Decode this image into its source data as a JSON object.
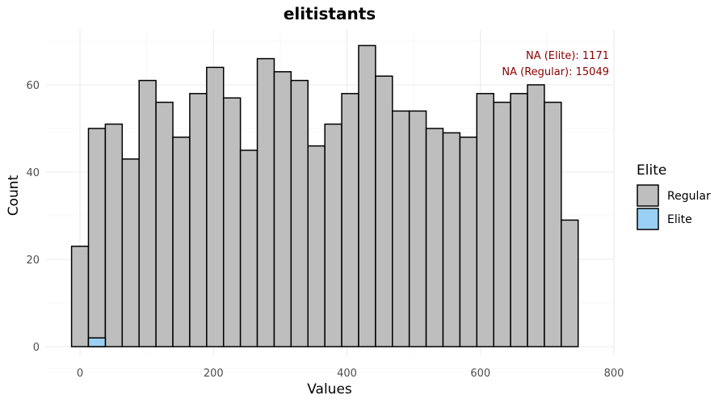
{
  "chart_data": {
    "type": "bar",
    "title": "elitistants",
    "xlabel": "Values",
    "ylabel": "Count",
    "xlim": [
      -25,
      800
    ],
    "ylim": [
      0,
      70
    ],
    "x_ticks": [
      0,
      200,
      400,
      600,
      800
    ],
    "y_ticks": [
      0,
      20,
      40,
      60
    ],
    "bin_width": 25.3,
    "bin_start": -12.6,
    "grid": true,
    "legend": {
      "title": "Elite",
      "position": "right",
      "entries": [
        {
          "label": "Regular",
          "color": "#bebebe"
        },
        {
          "label": "Elite",
          "color": "#9ad0f3"
        }
      ]
    },
    "series": [
      {
        "name": "Regular",
        "color": "#bebebe",
        "values": [
          23,
          50,
          51,
          43,
          61,
          56,
          48,
          58,
          64,
          57,
          45,
          66,
          63,
          61,
          46,
          51,
          58,
          69,
          62,
          54,
          54,
          50,
          49,
          48,
          58,
          56,
          58,
          60,
          56,
          29
        ]
      },
      {
        "name": "Elite",
        "color": "#9ad0f3",
        "values": [
          0,
          2,
          0,
          0,
          0,
          0,
          0,
          0,
          0,
          0,
          0,
          0,
          0,
          0,
          0,
          0,
          0,
          0,
          0,
          0,
          0,
          0,
          0,
          0,
          0,
          0,
          0,
          0,
          0,
          0
        ]
      }
    ],
    "annotations": [
      "NA (Elite): 1171",
      "NA (Regular): 15049"
    ]
  }
}
